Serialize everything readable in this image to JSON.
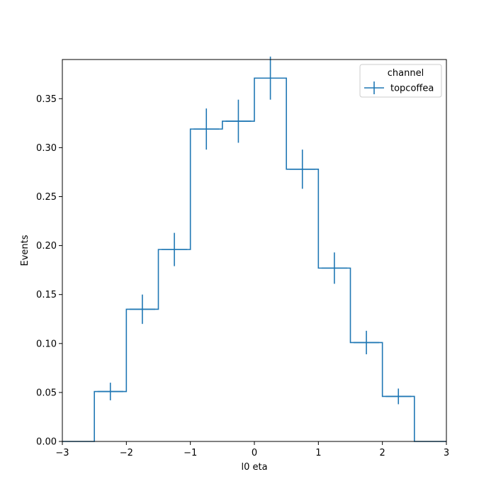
{
  "chart_data": {
    "type": "histogram-step",
    "xlabel": "l0 eta",
    "ylabel": "Events",
    "xlim": [
      -3,
      3
    ],
    "ylim": [
      0,
      0.39
    ],
    "x_ticks": [
      -3,
      -2,
      -1,
      0,
      1,
      2,
      3
    ],
    "x_tick_labels": [
      "−3",
      "−2",
      "−1",
      "0",
      "1",
      "2",
      "3"
    ],
    "y_ticks": [
      0.0,
      0.05,
      0.1,
      0.15,
      0.2,
      0.25,
      0.3,
      0.35
    ],
    "y_tick_labels": [
      "0.00",
      "0.05",
      "0.10",
      "0.15",
      "0.20",
      "0.25",
      "0.30",
      "0.35"
    ],
    "bin_edges": [
      -3.0,
      -2.5,
      -2.0,
      -1.5,
      -1.0,
      -0.5,
      0.0,
      0.5,
      1.0,
      1.5,
      2.0,
      2.5,
      3.0
    ],
    "legend": {
      "title": "channel",
      "placement": "top-right"
    },
    "series": [
      {
        "name": "topcoffea",
        "color": "#1f77b4",
        "values": [
          0.0,
          0.051,
          0.135,
          0.196,
          0.319,
          0.327,
          0.371,
          0.278,
          0.177,
          0.101,
          0.046,
          0.0
        ],
        "errors": [
          0.0,
          0.009,
          0.015,
          0.017,
          0.021,
          0.022,
          0.022,
          0.02,
          0.016,
          0.012,
          0.008,
          0.0
        ]
      }
    ],
    "grid": false
  }
}
